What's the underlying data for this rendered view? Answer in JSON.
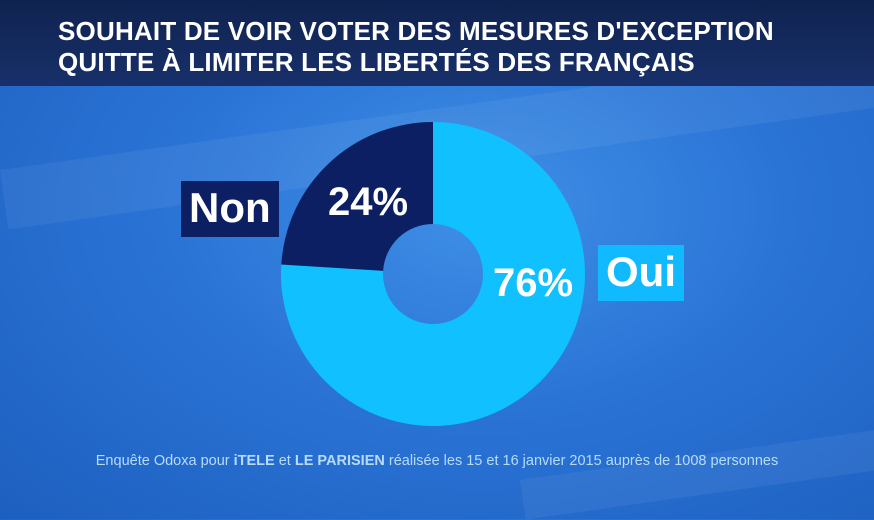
{
  "title": {
    "line1": "SOUHAIT DE VOIR VOTER DES MESURES D'EXCEPTION",
    "line2": "QUITTE À LIMITER LES LIBERTÉS DES FRANÇAIS"
  },
  "chart_data": {
    "type": "pie",
    "categories": [
      "Oui",
      "Non"
    ],
    "values": [
      76,
      24
    ],
    "value_labels": [
      "76%",
      "24%"
    ],
    "colors": [
      "#10c0ff",
      "#0c1f63"
    ],
    "donut": true
  },
  "footer": {
    "text_before": "Enquête Odoxa pour ",
    "brand1": "iTELE",
    "text_middle": " et ",
    "brand2": "LE PARISIEN",
    "text_after": " réalisée les 15 et 16 janvier 2015 auprès de 1008 personnes"
  },
  "colors": {
    "header_bg": "#132a5e",
    "background": "#2a74d6",
    "oui": "#10c0ff",
    "non": "#0c1f63"
  }
}
